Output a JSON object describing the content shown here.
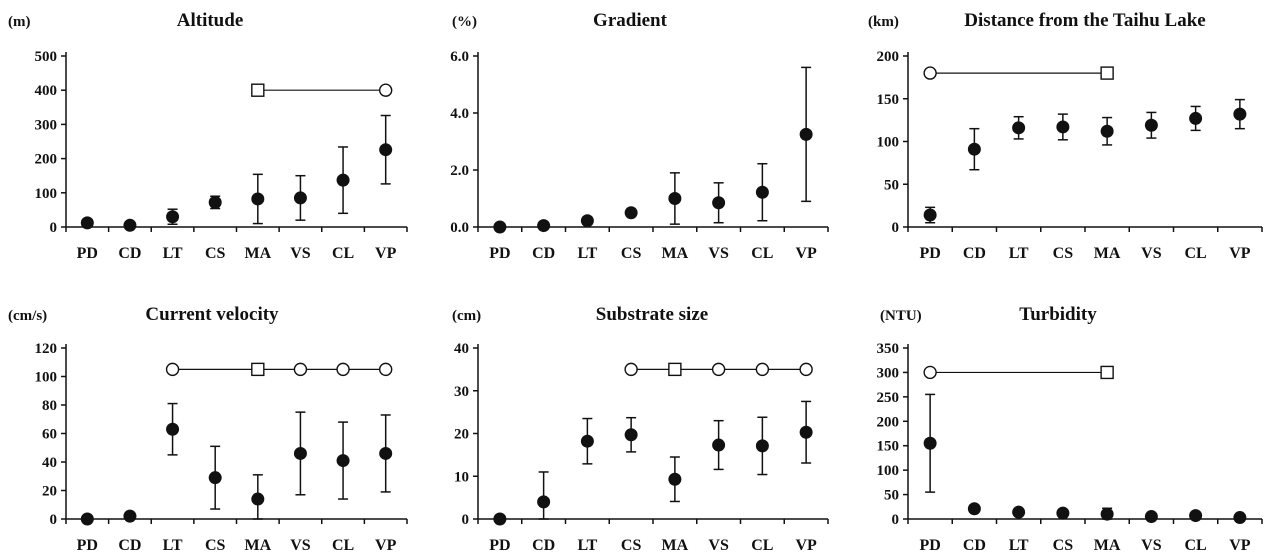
{
  "chart_data": [
    {
      "type": "scatter",
      "title": "Altitude",
      "ylabel": "(m)",
      "categories": [
        "PD",
        "CD",
        "LT",
        "CS",
        "MA",
        "VS",
        "CL",
        "VP"
      ],
      "ylim": [
        0,
        500
      ],
      "yticks": [
        "0",
        "100",
        "200",
        "300",
        "400",
        "500"
      ],
      "ytick_values": [
        0,
        100,
        200,
        300,
        400,
        500
      ],
      "series": [
        {
          "values": [
            12,
            5,
            30,
            72,
            82,
            85,
            137,
            226
          ],
          "error": [
            0,
            0,
            22,
            18,
            72,
            65,
            97,
            100
          ]
        }
      ],
      "grouping": {
        "level": 400,
        "start": 4,
        "end": 7,
        "markers": [
          [
            "square",
            4
          ],
          [
            "circle",
            7
          ]
        ]
      },
      "grid": false
    },
    {
      "type": "scatter",
      "title": "Gradient",
      "ylabel": "(%)",
      "categories": [
        "PD",
        "CD",
        "LT",
        "CS",
        "MA",
        "VS",
        "CL",
        "VP"
      ],
      "ylim": [
        0,
        6
      ],
      "yticks": [
        "0.0",
        "2.0",
        "4.0",
        "6.0"
      ],
      "ytick_values": [
        0,
        2,
        4,
        6
      ],
      "series": [
        {
          "values": [
            0.0,
            0.05,
            0.22,
            0.5,
            1.0,
            0.85,
            1.22,
            3.25
          ],
          "error": [
            0,
            0,
            0,
            0,
            0.9,
            0.7,
            1.0,
            2.35
          ]
        }
      ],
      "grouping": null,
      "grid": false
    },
    {
      "type": "scatter",
      "title": "Distance from the Taihu Lake",
      "ylabel": "(km)",
      "categories": [
        "PD",
        "CD",
        "LT",
        "CS",
        "MA",
        "VS",
        "CL",
        "VP"
      ],
      "ylim": [
        0,
        200
      ],
      "yticks": [
        "0",
        "50",
        "100",
        "150",
        "200"
      ],
      "ytick_values": [
        0,
        50,
        100,
        150,
        200
      ],
      "series": [
        {
          "values": [
            14,
            91,
            116,
            117,
            112,
            119,
            127,
            132
          ],
          "error": [
            9,
            24,
            13,
            15,
            16,
            15,
            14,
            17
          ]
        }
      ],
      "grouping": {
        "level": 180,
        "start": 0,
        "end": 4,
        "markers": [
          [
            "circle",
            0
          ],
          [
            "square",
            4
          ]
        ]
      },
      "grid": false
    },
    {
      "type": "scatter",
      "title": "Current velocity",
      "ylabel": "(cm/s)",
      "categories": [
        "PD",
        "CD",
        "LT",
        "CS",
        "MA",
        "VS",
        "CL",
        "VP"
      ],
      "ylim": [
        0,
        120
      ],
      "yticks": [
        "0",
        "20",
        "40",
        "60",
        "80",
        "100",
        "120"
      ],
      "ytick_values": [
        0,
        20,
        40,
        60,
        80,
        100,
        120
      ],
      "series": [
        {
          "values": [
            0,
            2,
            63,
            29,
            14,
            46,
            41,
            46
          ],
          "error": [
            0,
            0,
            18,
            22,
            17,
            29,
            27,
            27
          ]
        }
      ],
      "grouping": {
        "level": 105,
        "start": 2,
        "end": 7,
        "markers": [
          [
            "circle",
            2
          ],
          [
            "square",
            4
          ],
          [
            "circle",
            5
          ],
          [
            "circle",
            6
          ],
          [
            "circle",
            7
          ]
        ]
      },
      "grid": false
    },
    {
      "type": "scatter",
      "title": "Substrate size",
      "ylabel": "(cm)",
      "categories": [
        "PD",
        "CD",
        "LT",
        "CS",
        "MA",
        "VS",
        "CL",
        "VP"
      ],
      "ylim": [
        0,
        40
      ],
      "yticks": [
        "0",
        "10",
        "20",
        "30",
        "40"
      ],
      "ytick_values": [
        0,
        10,
        20,
        30,
        40
      ],
      "series": [
        {
          "values": [
            0,
            4,
            18.2,
            19.7,
            9.3,
            17.3,
            17.1,
            20.3
          ],
          "error": [
            0,
            7,
            5.3,
            4,
            5.2,
            5.7,
            6.7,
            7.2
          ]
        }
      ],
      "grouping": {
        "level": 35,
        "start": 3,
        "end": 7,
        "markers": [
          [
            "circle",
            3
          ],
          [
            "square",
            4
          ],
          [
            "circle",
            5
          ],
          [
            "circle",
            6
          ],
          [
            "circle",
            7
          ]
        ]
      },
      "grid": false
    },
    {
      "type": "scatter",
      "title": "Turbidity",
      "ylabel": "(NTU)",
      "categories": [
        "PD",
        "CD",
        "LT",
        "CS",
        "MA",
        "VS",
        "CL",
        "VP"
      ],
      "ylim": [
        0,
        350
      ],
      "yticks": [
        "0",
        "50",
        "100",
        "150",
        "200",
        "250",
        "300",
        "350"
      ],
      "ytick_values": [
        0,
        50,
        100,
        150,
        200,
        250,
        300,
        350
      ],
      "series": [
        {
          "values": [
            155,
            21,
            14,
            12,
            10,
            5,
            7,
            3
          ],
          "error": [
            100,
            0,
            0,
            0,
            12,
            0,
            0,
            0
          ]
        }
      ],
      "grouping": {
        "level": 300,
        "start": 0,
        "end": 4,
        "markers": [
          [
            "circle",
            0
          ],
          [
            "square",
            4
          ]
        ]
      },
      "grid": false
    }
  ]
}
